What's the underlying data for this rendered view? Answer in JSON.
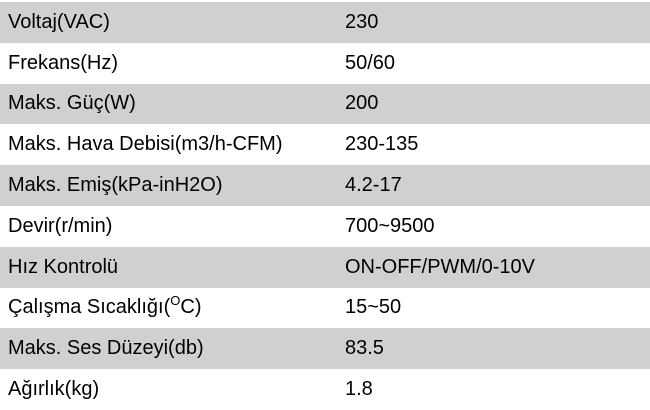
{
  "theme": {
    "stripe_color": "#d0d0d0",
    "background_color": "#ffffff",
    "text_color": "#000000"
  },
  "table": {
    "rows": [
      {
        "label": "Voltaj(VAC)",
        "value": "230"
      },
      {
        "label": "Frekans(Hz)",
        "value": "50/60"
      },
      {
        "label": "Maks. Güç(W)",
        "value": "200"
      },
      {
        "label": "Maks. Hava Debisi(m3/h-CFM)",
        "value": "230-135"
      },
      {
        "label": "Maks. Emiş(kPa-inH2O)",
        "value": "4.2-17"
      },
      {
        "label": "Devir(r/min)",
        "value": "700~9500"
      },
      {
        "label": "Hız Kontrolü",
        "value": "ON-OFF/PWM/0-10V"
      },
      {
        "label_pre": "Çalışma Sıcaklığı(",
        "label_sup": "O",
        "label_post": "C)",
        "value": "15~50"
      },
      {
        "label": "Maks. Ses Düzeyi(db)",
        "value": "83.5"
      },
      {
        "label": "Ağırlık(kg)",
        "value": "1.8"
      }
    ]
  }
}
